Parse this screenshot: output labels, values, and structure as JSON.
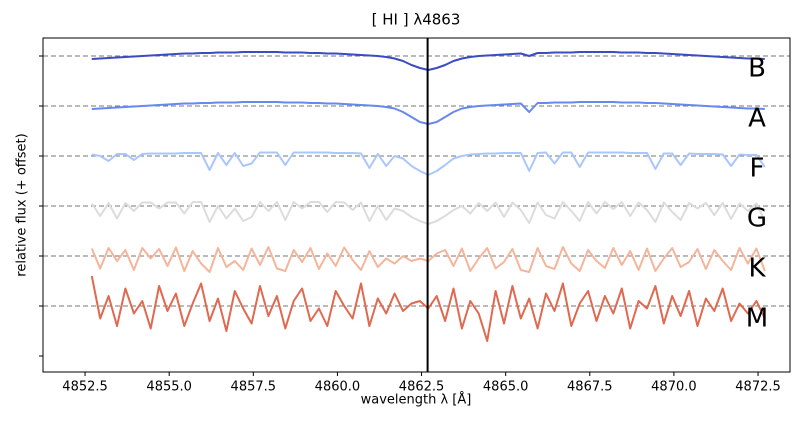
{
  "chart_data": {
    "type": "line",
    "title": "[ HI ] λ4863",
    "xlabel": "wavelength λ [Å]",
    "ylabel": "relative flux (+ offset)",
    "x": [
      4852.7,
      4852.95,
      4853.2,
      4853.45,
      4853.7,
      4853.95,
      4854.2,
      4854.45,
      4854.7,
      4854.95,
      4855.2,
      4855.45,
      4855.7,
      4855.95,
      4856.2,
      4856.45,
      4856.7,
      4856.95,
      4857.2,
      4857.45,
      4857.7,
      4857.95,
      4858.2,
      4858.45,
      4858.7,
      4858.95,
      4859.2,
      4859.45,
      4859.7,
      4859.95,
      4860.2,
      4860.45,
      4860.7,
      4860.95,
      4861.2,
      4861.45,
      4861.7,
      4861.95,
      4862.2,
      4862.45,
      4862.7,
      4862.95,
      4863.2,
      4863.45,
      4863.7,
      4863.95,
      4864.2,
      4864.45,
      4864.7,
      4864.95,
      4865.2,
      4865.45,
      4865.7,
      4865.95,
      4866.2,
      4866.45,
      4866.7,
      4866.95,
      4867.2,
      4867.45,
      4867.7,
      4867.95,
      4868.2,
      4868.45,
      4868.7,
      4868.95,
      4869.2,
      4869.45,
      4869.7,
      4869.95,
      4870.2,
      4870.45,
      4870.7,
      4870.95,
      4871.2,
      4871.45,
      4871.7,
      4871.95,
      4872.2,
      4872.45,
      4872.7
    ],
    "series": [
      {
        "name": "B",
        "color": "#3b4cc0",
        "values": [
          5.94,
          5.95,
          5.96,
          5.97,
          5.98,
          5.99,
          6.0,
          6.01,
          6.02,
          6.03,
          6.04,
          6.05,
          6.05,
          6.06,
          6.06,
          6.07,
          6.07,
          6.07,
          6.08,
          6.08,
          6.08,
          6.08,
          6.08,
          6.07,
          6.07,
          6.07,
          6.06,
          6.06,
          6.05,
          6.05,
          6.04,
          6.03,
          6.02,
          6.01,
          6.0,
          5.98,
          5.95,
          5.9,
          5.82,
          5.76,
          5.72,
          5.76,
          5.82,
          5.9,
          5.95,
          5.98,
          6.0,
          6.01,
          6.02,
          6.03,
          6.04,
          6.05,
          6.0,
          6.06,
          6.06,
          6.07,
          6.07,
          6.07,
          6.08,
          6.08,
          6.08,
          6.08,
          6.08,
          6.07,
          6.07,
          6.07,
          6.06,
          6.06,
          6.05,
          6.04,
          6.03,
          6.02,
          6.01,
          6.0,
          5.99,
          5.98,
          5.97,
          5.96,
          5.95,
          5.95,
          5.94
        ]
      },
      {
        "name": "A",
        "color": "#6788ee",
        "values": [
          4.94,
          4.95,
          4.96,
          4.97,
          4.98,
          4.99,
          5.0,
          5.01,
          5.02,
          5.03,
          5.04,
          5.05,
          5.05,
          5.06,
          5.06,
          5.07,
          5.07,
          5.07,
          5.08,
          5.08,
          5.08,
          5.08,
          5.08,
          5.07,
          5.07,
          5.07,
          5.06,
          5.06,
          5.05,
          5.05,
          5.04,
          5.03,
          5.02,
          5.01,
          5.0,
          4.98,
          4.95,
          4.88,
          4.78,
          4.68,
          4.64,
          4.68,
          4.78,
          4.88,
          4.95,
          4.98,
          5.0,
          5.01,
          5.02,
          5.03,
          5.04,
          5.05,
          4.88,
          5.06,
          5.06,
          5.07,
          5.07,
          5.07,
          5.08,
          5.08,
          5.08,
          5.08,
          5.08,
          5.07,
          5.07,
          5.07,
          5.06,
          5.06,
          5.05,
          5.04,
          5.03,
          5.02,
          5.01,
          5.0,
          4.99,
          4.98,
          4.97,
          4.96,
          4.95,
          4.95,
          4.94
        ]
      },
      {
        "name": "F",
        "color": "#aac7fd",
        "values": [
          4.03,
          4.0,
          3.9,
          4.04,
          4.04,
          3.92,
          4.04,
          4.05,
          4.05,
          4.05,
          4.05,
          4.06,
          4.06,
          4.06,
          3.72,
          4.06,
          3.82,
          4.06,
          3.8,
          3.85,
          4.07,
          4.07,
          4.07,
          3.82,
          4.07,
          4.07,
          4.07,
          4.07,
          4.07,
          4.06,
          4.06,
          4.06,
          4.05,
          3.76,
          4.04,
          3.8,
          4.0,
          3.95,
          3.8,
          3.7,
          3.62,
          3.7,
          3.82,
          3.95,
          4.0,
          4.03,
          4.04,
          4.05,
          4.05,
          4.06,
          4.06,
          4.06,
          3.7,
          4.06,
          4.07,
          3.85,
          4.07,
          4.07,
          3.78,
          4.07,
          4.07,
          4.07,
          4.07,
          4.07,
          4.06,
          4.06,
          4.06,
          3.74,
          4.05,
          4.05,
          3.82,
          4.05,
          4.04,
          4.04,
          4.04,
          4.03,
          3.8,
          4.03,
          4.02,
          4.02,
          3.78
        ]
      },
      {
        "name": "G",
        "color": "#dddcdc",
        "values": [
          3.05,
          2.8,
          3.06,
          2.75,
          3.06,
          2.9,
          3.07,
          3.07,
          2.95,
          3.07,
          3.07,
          2.85,
          3.08,
          3.08,
          2.68,
          3.0,
          2.75,
          2.95,
          2.7,
          2.78,
          3.08,
          2.9,
          3.08,
          2.72,
          3.08,
          2.95,
          3.08,
          3.08,
          2.88,
          3.08,
          3.07,
          2.92,
          3.07,
          2.7,
          3.0,
          2.72,
          2.95,
          2.9,
          2.78,
          2.7,
          2.64,
          2.7,
          2.8,
          2.92,
          3.0,
          2.85,
          3.06,
          2.9,
          3.07,
          2.78,
          3.07,
          2.92,
          2.66,
          3.07,
          2.82,
          2.75,
          3.08,
          2.9,
          2.7,
          3.08,
          2.85,
          3.08,
          2.94,
          3.08,
          2.8,
          3.07,
          2.92,
          2.68,
          3.07,
          2.88,
          2.72,
          3.06,
          2.95,
          3.06,
          2.82,
          3.06,
          2.74,
          3.05,
          2.9,
          3.05,
          2.7
        ]
      },
      {
        "name": "K",
        "color": "#f4b59b",
        "values": [
          2.15,
          1.75,
          2.16,
          1.9,
          2.12,
          1.72,
          2.16,
          1.95,
          2.14,
          1.8,
          2.17,
          1.7,
          2.1,
          1.85,
          1.68,
          2.16,
          1.78,
          1.9,
          1.72,
          2.15,
          1.82,
          2.18,
          1.75,
          1.7,
          2.12,
          1.88,
          2.16,
          1.74,
          2.05,
          1.8,
          2.17,
          1.92,
          1.72,
          2.1,
          1.78,
          1.95,
          1.85,
          2.0,
          1.9,
          1.95,
          1.9,
          2.05,
          2.12,
          1.8,
          2.15,
          1.7,
          1.95,
          2.16,
          1.75,
          1.88,
          2.14,
          1.72,
          1.68,
          2.16,
          1.8,
          1.74,
          2.18,
          1.85,
          1.7,
          2.12,
          1.9,
          1.76,
          2.16,
          1.82,
          2.1,
          1.72,
          2.15,
          1.7,
          1.95,
          2.16,
          1.78,
          1.88,
          2.14,
          1.74,
          2.12,
          1.9,
          1.72,
          2.16,
          1.85,
          2.15,
          1.7
        ]
      },
      {
        "name": "M",
        "color": "#e0694f",
        "values": [
          1.6,
          0.75,
          1.2,
          0.6,
          1.35,
          0.85,
          1.1,
          0.55,
          1.4,
          0.9,
          1.25,
          0.6,
          1.05,
          1.45,
          0.7,
          1.15,
          0.5,
          1.3,
          0.95,
          0.65,
          1.4,
          0.8,
          1.2,
          0.55,
          1.1,
          1.35,
          0.7,
          0.95,
          0.6,
          1.3,
          1.0,
          0.75,
          1.45,
          0.6,
          1.15,
          0.85,
          1.25,
          0.9,
          1.05,
          1.1,
          0.95,
          1.2,
          0.7,
          1.35,
          0.55,
          1.1,
          0.85,
          0.3,
          1.3,
          0.65,
          1.4,
          0.75,
          1.15,
          0.55,
          1.25,
          0.9,
          1.45,
          0.6,
          1.05,
          1.3,
          0.7,
          1.2,
          0.85,
          1.35,
          0.55,
          1.1,
          0.95,
          1.4,
          0.65,
          1.2,
          0.8,
          1.3,
          0.6,
          1.15,
          0.9,
          1.35,
          0.7,
          1.05,
          0.85,
          1.1,
          0.75
        ]
      }
    ],
    "xlim": [
      4851.25,
      4873.45
    ],
    "ylim": [
      -0.32,
      6.36
    ],
    "xticks": [
      4852.5,
      {
        "value": 4855.0,
        "label": "4855.0"
      },
      4857.5,
      {
        "value": 4860.0,
        "label": "4860.0"
      },
      4862.5,
      {
        "value": 4865.0,
        "label": "4865.0"
      },
      4867.5,
      {
        "value": 4870.0,
        "label": "4870.0"
      },
      4872.5
    ],
    "yticks": [
      0,
      1,
      2,
      3,
      4,
      5,
      6
    ],
    "hlines": [
      6,
      5,
      4,
      3,
      2,
      1
    ],
    "vline": 4862.68
  }
}
